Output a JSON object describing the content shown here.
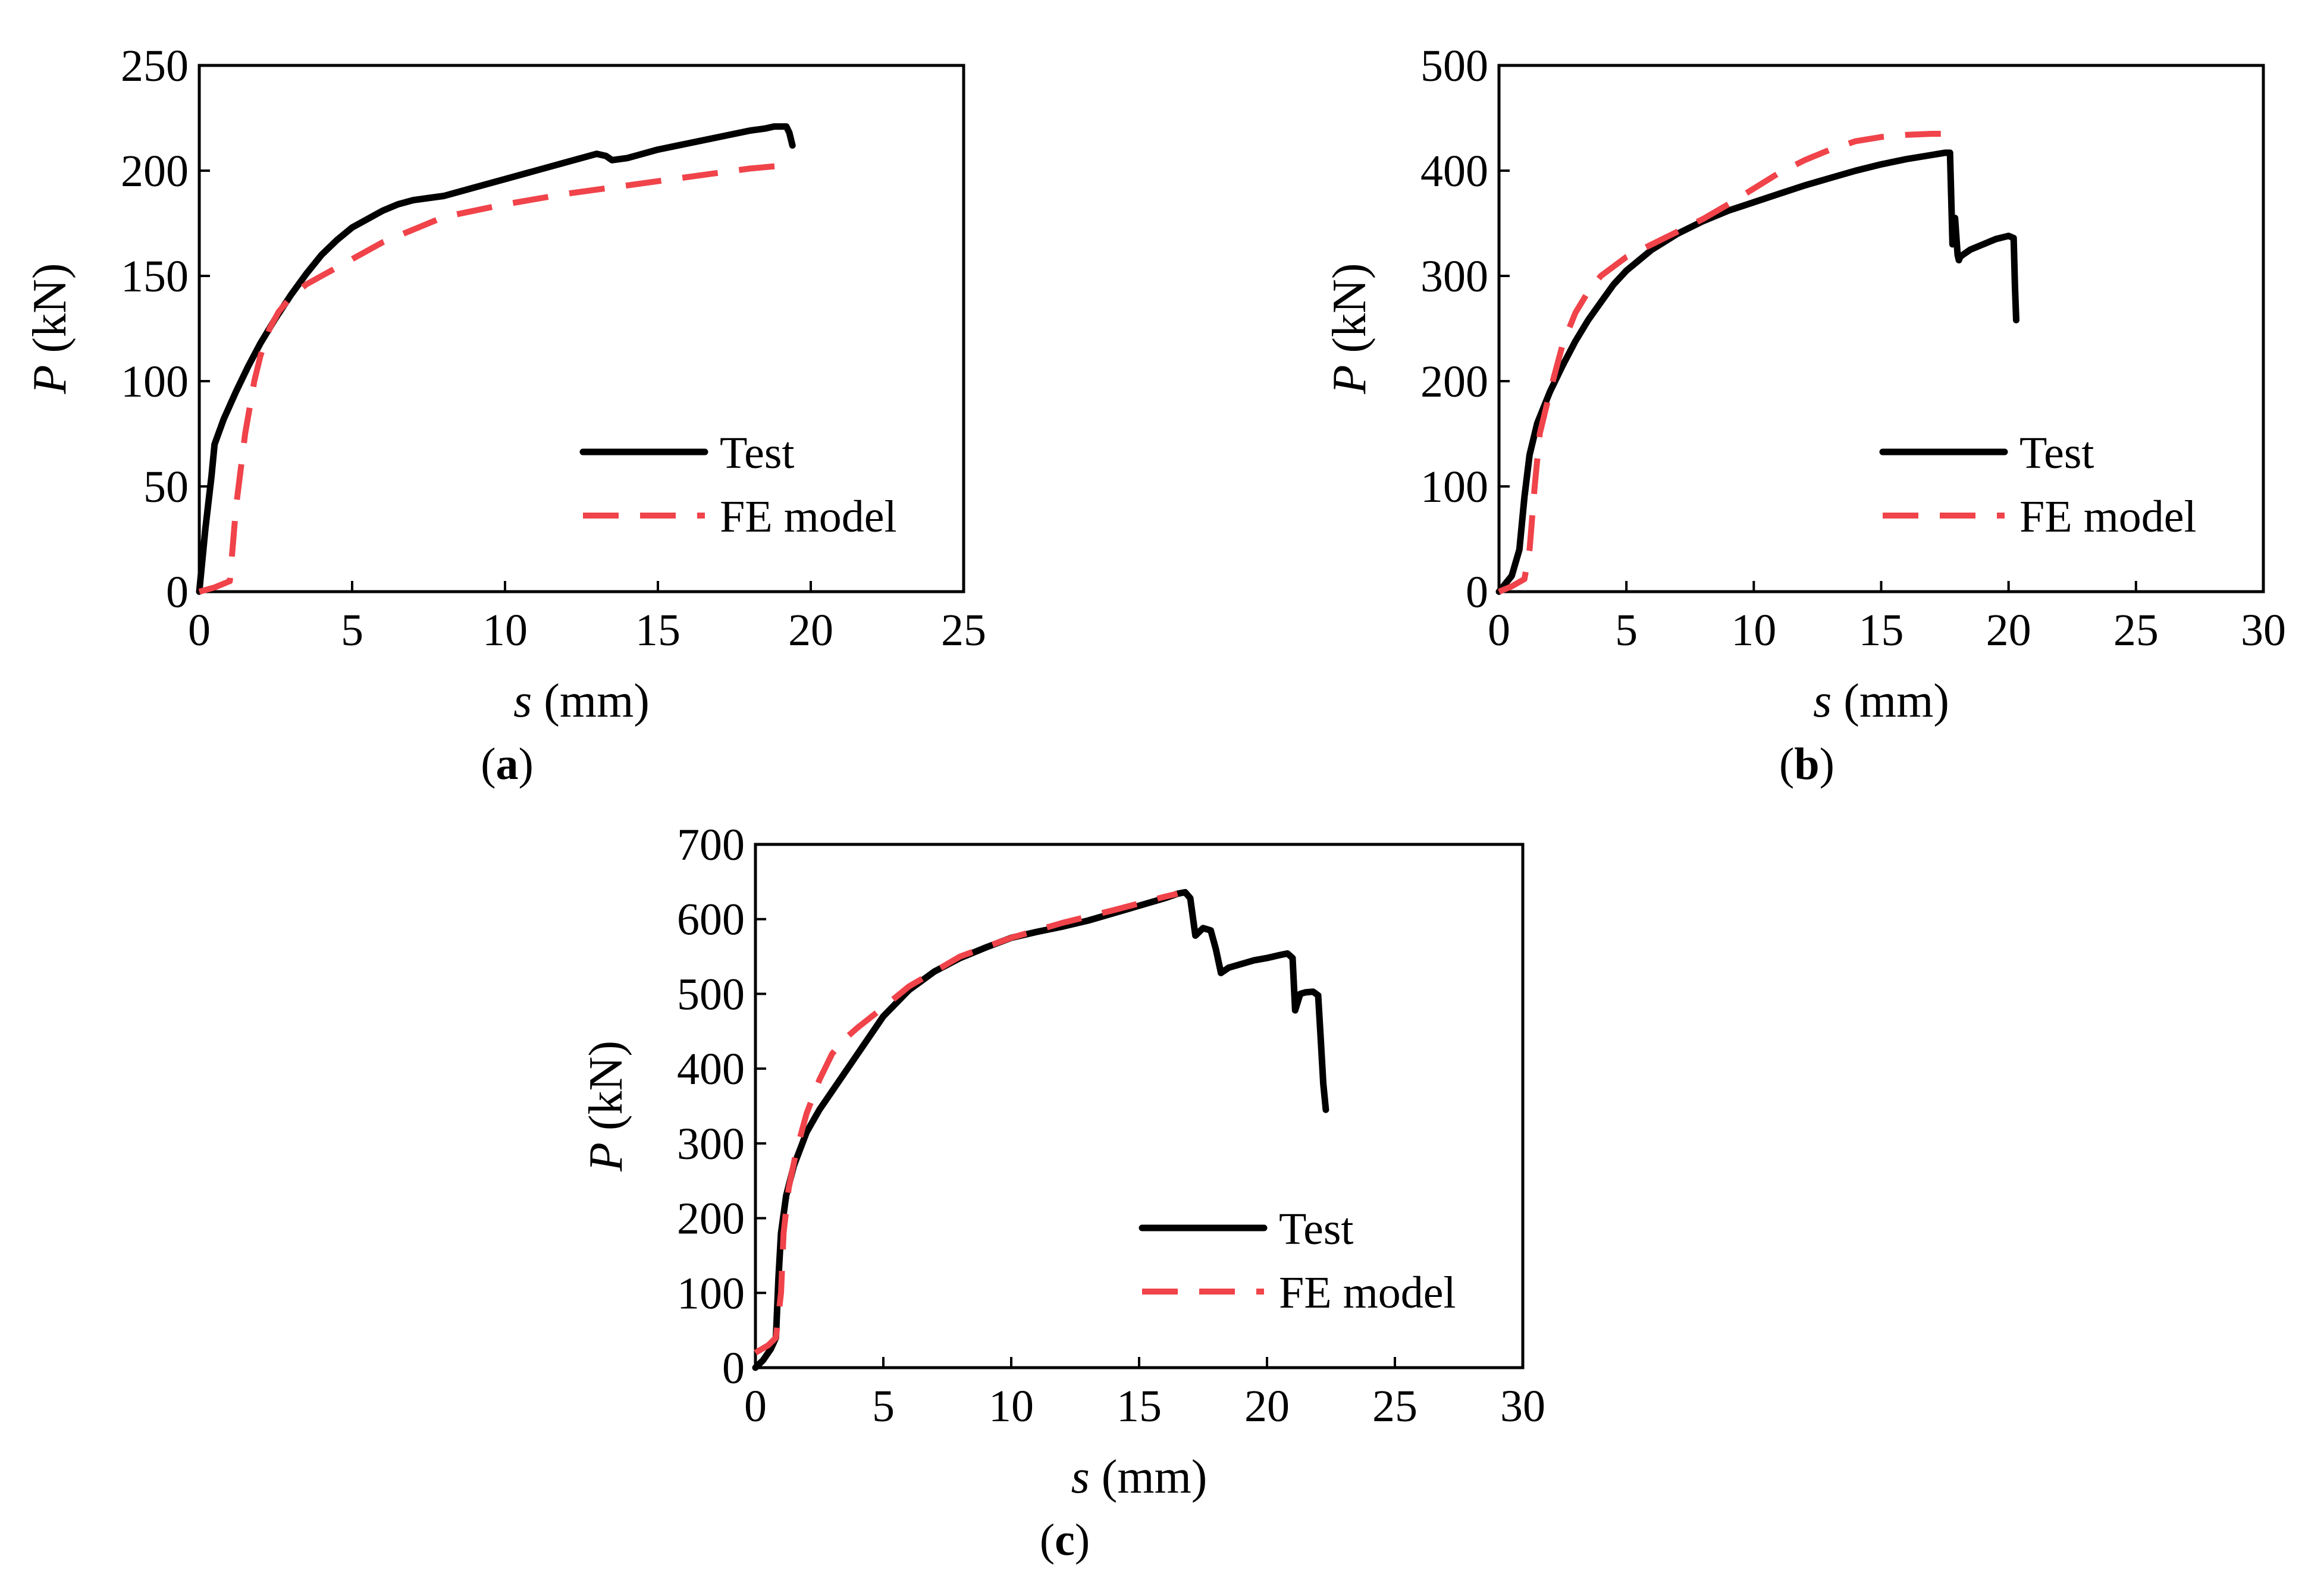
{
  "colors": {
    "test": "#000000",
    "fe": "#f0434a",
    "axis": "#000000"
  },
  "chart_data": [
    {
      "type": "line",
      "panel": "a",
      "xlabel_italic": "s",
      "xlabel_unit": " (mm)",
      "ylabel_italic": "P",
      "ylabel_unit": " (kN)",
      "xlim": [
        0,
        25
      ],
      "ylim": [
        0,
        250
      ],
      "xticks": [
        0,
        5,
        10,
        15,
        20,
        25
      ],
      "yticks": [
        0,
        50,
        100,
        150,
        200,
        250
      ],
      "legend_position": "lower-right",
      "series": [
        {
          "name": "Test",
          "style": "solid",
          "x": [
            0,
            0.2,
            0.4,
            0.5,
            0.8,
            1.2,
            1.6,
            2,
            2.5,
            3,
            3.5,
            4,
            4.5,
            5,
            5.5,
            6,
            6.5,
            7,
            7.5,
            8,
            8.5,
            9,
            10,
            11,
            12,
            13,
            13.3,
            13.5,
            14,
            15,
            16,
            17,
            18,
            18.5,
            18.8,
            19.2,
            19.3,
            19.4
          ],
          "y": [
            0,
            30,
            55,
            70,
            82,
            95,
            107,
            118,
            130,
            141,
            151,
            160,
            167,
            173,
            177,
            181,
            184,
            186,
            187,
            188,
            190,
            192,
            196,
            200,
            204,
            208,
            207,
            205,
            206,
            210,
            213,
            216,
            219,
            220,
            221,
            221,
            218,
            212
          ]
        },
        {
          "name": "FE model",
          "style": "dashed",
          "x": [
            0,
            0.5,
            1,
            1.2,
            1.5,
            1.8,
            2,
            2.3,
            2.6,
            3,
            3.5,
            4,
            5,
            6,
            7,
            8,
            10,
            12,
            14,
            16,
            18,
            19.5
          ],
          "y": [
            0,
            2,
            5,
            40,
            75,
            100,
            112,
            125,
            133,
            140,
            146,
            150,
            158,
            166,
            172,
            178,
            184,
            189,
            193,
            197,
            201,
            203
          ]
        }
      ]
    },
    {
      "type": "line",
      "panel": "b",
      "xlabel_italic": "s",
      "xlabel_unit": " (mm)",
      "ylabel_italic": "P",
      "ylabel_unit": " (kN)",
      "xlim": [
        0,
        30
      ],
      "ylim": [
        0,
        500
      ],
      "xticks": [
        0,
        5,
        10,
        15,
        20,
        25,
        30
      ],
      "yticks": [
        0,
        100,
        200,
        300,
        400,
        500
      ],
      "legend_position": "lower-right",
      "series": [
        {
          "name": "Test",
          "style": "solid",
          "x": [
            0,
            0.5,
            0.8,
            1,
            1.2,
            1.5,
            2,
            2.5,
            3,
            3.5,
            4,
            4.5,
            5,
            6,
            7,
            8,
            9,
            10,
            11,
            12,
            13,
            14,
            15,
            16,
            17,
            17.5,
            17.7,
            17.8,
            17.9,
            18,
            18.05,
            18.1,
            18.2,
            18.5,
            19,
            19.5,
            20,
            20.2,
            20.25,
            20.3
          ],
          "y": [
            0,
            15,
            40,
            90,
            130,
            160,
            190,
            215,
            238,
            258,
            275,
            292,
            305,
            325,
            340,
            352,
            362,
            370,
            378,
            386,
            393,
            400,
            406,
            411,
            415,
            417,
            417,
            330,
            355,
            320,
            315,
            318,
            320,
            325,
            330,
            335,
            338,
            336,
            290,
            258
          ]
        },
        {
          "name": "FE model",
          "style": "dashed",
          "x": [
            0,
            0.5,
            1,
            1.2,
            1.4,
            1.6,
            2,
            2.5,
            3,
            3.5,
            4,
            5,
            6,
            7,
            8,
            9,
            10,
            11,
            12,
            13,
            14,
            15,
            16,
            17,
            18
          ],
          "y": [
            0,
            5,
            12,
            40,
            100,
            150,
            190,
            235,
            265,
            285,
            300,
            318,
            330,
            342,
            354,
            368,
            383,
            398,
            410,
            420,
            428,
            432,
            434,
            435,
            435
          ]
        }
      ]
    },
    {
      "type": "line",
      "panel": "c",
      "xlabel_italic": "s",
      "xlabel_unit": " (mm)",
      "ylabel_italic": "P",
      "ylabel_unit": " (kN)",
      "xlim": [
        0,
        30
      ],
      "ylim": [
        0,
        700
      ],
      "xticks": [
        0,
        5,
        10,
        15,
        20,
        25,
        30
      ],
      "yticks": [
        0,
        100,
        200,
        300,
        400,
        500,
        600,
        700
      ],
      "legend_position": "lower-right",
      "series": [
        {
          "name": "Test",
          "style": "solid",
          "x": [
            0,
            0.3,
            0.6,
            0.8,
            0.9,
            1,
            1.2,
            1.5,
            2,
            2.5,
            3,
            4,
            5,
            6,
            7,
            8,
            9,
            10,
            11,
            12,
            13,
            14,
            15,
            16,
            16.5,
            16.8,
            17,
            17.2,
            17.5,
            17.8,
            18,
            18.2,
            18.5,
            19,
            19.5,
            20,
            20.5,
            20.8,
            21,
            21.1,
            21.3,
            21.5,
            21.8,
            22,
            22.1,
            22.2,
            22.3
          ],
          "y": [
            0,
            10,
            25,
            40,
            120,
            180,
            230,
            270,
            315,
            345,
            370,
            420,
            470,
            505,
            530,
            548,
            562,
            575,
            583,
            590,
            598,
            608,
            618,
            628,
            634,
            636,
            628,
            578,
            588,
            585,
            560,
            528,
            535,
            540,
            545,
            548,
            552,
            554,
            548,
            478,
            500,
            502,
            503,
            498,
            440,
            380,
            345
          ]
        },
        {
          "name": "FE model",
          "style": "dashed",
          "x": [
            0,
            0.5,
            0.8,
            1,
            1.1,
            1.3,
            1.6,
            2,
            2.5,
            3,
            3.5,
            4,
            5,
            6,
            7,
            8,
            10,
            12,
            14,
            16,
            16.5
          ],
          "y": [
            20,
            30,
            40,
            100,
            180,
            240,
            290,
            340,
            385,
            420,
            440,
            455,
            482,
            510,
            530,
            550,
            575,
            595,
            612,
            630,
            634
          ]
        }
      ]
    }
  ],
  "panels": [
    {
      "label_open": "(",
      "label_letter": "a",
      "label_close": ")",
      "xticks": [
        "0",
        "5",
        "10",
        "15",
        "20",
        "25"
      ],
      "yticks": [
        "0",
        "50",
        "100",
        "150",
        "200",
        "250"
      ],
      "x_title_italic": "s",
      "x_title_unit": " (mm)",
      "y_title_italic": "P",
      "y_title_unit": " (kN)",
      "legend": [
        "Test",
        "FE model"
      ]
    },
    {
      "label_open": "(",
      "label_letter": "b",
      "label_close": ")",
      "xticks": [
        "0",
        "5",
        "10",
        "15",
        "20",
        "25",
        "30"
      ],
      "yticks": [
        "0",
        "100",
        "200",
        "300",
        "400",
        "500"
      ],
      "x_title_italic": "s",
      "x_title_unit": " (mm)",
      "y_title_italic": "P",
      "y_title_unit": " (kN)",
      "legend": [
        "Test",
        "FE model"
      ]
    },
    {
      "label_open": "(",
      "label_letter": "c",
      "label_close": ")",
      "xticks": [
        "0",
        "5",
        "10",
        "15",
        "20",
        "25",
        "30"
      ],
      "yticks": [
        "0",
        "100",
        "200",
        "300",
        "400",
        "500",
        "600",
        "700"
      ],
      "x_title_italic": "s",
      "x_title_unit": " (mm)",
      "y_title_italic": "P",
      "y_title_unit": " (kN)",
      "legend": [
        "Test",
        "FE model"
      ]
    }
  ]
}
